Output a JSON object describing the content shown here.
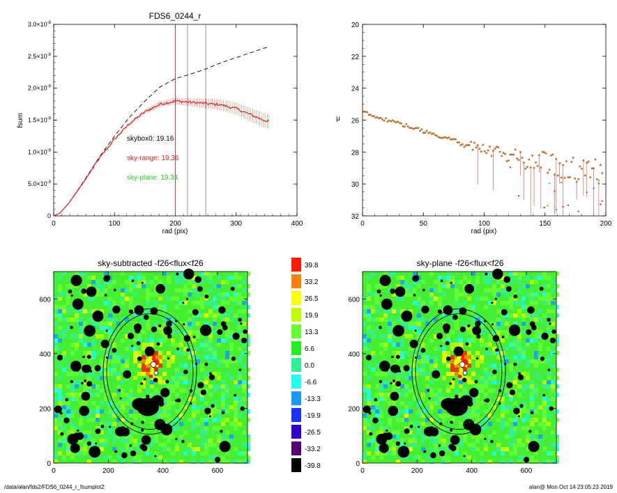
{
  "chart_data": [
    {
      "type": "line",
      "title": "FDS6_0244_r",
      "xlabel": "rad (pix)",
      "ylabel": "fsum",
      "xlim": [
        0,
        400
      ],
      "ylim": [
        0,
        3e-08
      ],
      "xticks": [
        "0",
        "100",
        "200",
        "300",
        "400"
      ],
      "yticks": [
        {
          "b": "0",
          "e": ""
        },
        {
          "b": "5.0×10",
          "e": "-9"
        },
        {
          "b": "1.0×10",
          "e": "-8"
        },
        {
          "b": "1.5×10",
          "e": "-8"
        },
        {
          "b": "2.0×10",
          "e": "-8"
        },
        {
          "b": "2.5×10",
          "e": "-8"
        },
        {
          "b": "3.0×10",
          "e": "-8"
        }
      ],
      "series": [
        {
          "style": "dashed",
          "color": "#000000",
          "x": [
            0,
            10,
            25,
            50,
            75,
            100,
            125,
            150,
            175,
            200,
            225,
            250,
            275,
            300,
            325,
            350,
            355
          ],
          "y": [
            0,
            4e-10,
            2e-09,
            5.5e-09,
            9.2e-09,
            1.25e-08,
            1.55e-08,
            1.8e-08,
            2.02e-08,
            2.15e-08,
            2.22e-08,
            2.3e-08,
            2.4e-08,
            2.48e-08,
            2.56e-08,
            2.64e-08,
            2.66e-08
          ]
        },
        {
          "style": "solid",
          "color": "#e02020",
          "x": [
            0,
            10,
            25,
            50,
            75,
            100,
            125,
            150,
            175,
            200,
            225,
            250,
            275,
            300,
            325,
            345,
            355
          ],
          "y": [
            0,
            4e-10,
            2e-09,
            5.4e-09,
            9e-09,
            1.2e-08,
            1.45e-08,
            1.63e-08,
            1.75e-08,
            1.8e-08,
            1.78e-08,
            1.76e-08,
            1.74e-08,
            1.68e-08,
            1.58e-08,
            1.5e-08,
            1.48e-08
          ]
        }
      ],
      "vlines": [
        {
          "x": 200,
          "color": "#e02020"
        },
        {
          "x": 220,
          "color": "#888888"
        },
        {
          "x": 250,
          "color": "#888888"
        }
      ],
      "annotations": [
        {
          "text": "skybox0: 19.16",
          "color": "#000000"
        },
        {
          "text": "sky-range: 19.36",
          "color": "#e02020"
        },
        {
          "text": "sky-plane: 19.34",
          "color": "#22cc22"
        }
      ]
    },
    {
      "type": "scatter",
      "title": "",
      "xlabel": "rad (pix)",
      "ylabel": "μ",
      "xlim": [
        0,
        200
      ],
      "ylim": [
        32,
        20
      ],
      "xticks": [
        "0",
        "50",
        "100",
        "150",
        "200"
      ],
      "yticks": [
        "20",
        "22",
        "24",
        "26",
        "28",
        "30",
        "32"
      ],
      "trend": {
        "x": [
          0,
          25,
          50,
          75,
          100,
          125,
          150,
          175,
          200
        ],
        "y": [
          25.5,
          26.1,
          26.7,
          27.3,
          27.9,
          28.3,
          28.7,
          29.0,
          29.2
        ]
      }
    },
    {
      "type": "heatmap",
      "title": "sky-subtracted -f26<flux<f26",
      "xlim": [
        0,
        710
      ],
      "ylim": [
        0,
        700
      ],
      "xticks": [
        "0",
        "200",
        "400",
        "600"
      ],
      "yticks": [
        "0",
        "200",
        "400",
        "600"
      ]
    },
    {
      "type": "heatmap",
      "title": "sky-plane -f26<flux<f26",
      "xlim": [
        0,
        710
      ],
      "ylim": [
        0,
        700
      ],
      "xticks": [
        "0",
        "200",
        "400",
        "600"
      ],
      "yticks": [
        "0",
        "200",
        "400",
        "600"
      ]
    }
  ],
  "colorbar": {
    "labels": [
      "39.8",
      "33.2",
      "26.5",
      "19.9",
      "13.3",
      "6.6",
      "0.0",
      "-6.6",
      "-13.3",
      "-19.9",
      "-26.5",
      "-33.2",
      "-39.8"
    ],
    "colors": [
      "#ff1a00",
      "#ff8000",
      "#ffff00",
      "#bfff00",
      "#66ff33",
      "#22ee22",
      "#33ee99",
      "#22ffee",
      "#1a99ff",
      "#1a33ff",
      "#3300cc",
      "#550077",
      "#000000"
    ]
  },
  "footer": {
    "path": "/data/alan/fds2/FDS6_0244_r_fsumplot2",
    "stamp": "alan@  Mon Oct 14 23:05:23 2019"
  }
}
